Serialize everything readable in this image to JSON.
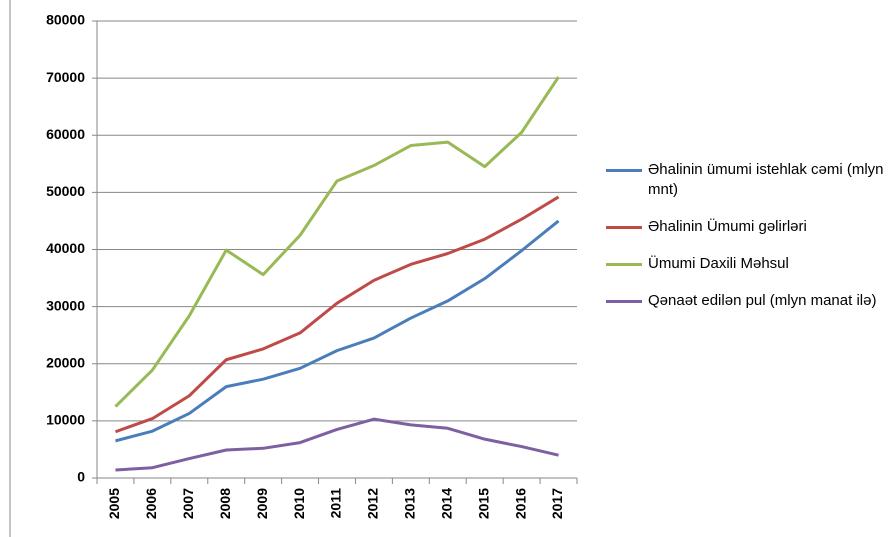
{
  "chart_data": {
    "type": "line",
    "categories": [
      "2005",
      "2006",
      "2007",
      "2008",
      "2009",
      "2010",
      "2011",
      "2012",
      "2013",
      "2014",
      "2015",
      "2016",
      "2017"
    ],
    "series": [
      {
        "name": "Əhalinin ümumi istehlak cəmi (mlyn mnt)",
        "color": "#4a7ebb",
        "values": [
          6500,
          8200,
          11300,
          16000,
          17300,
          19200,
          22300,
          24500,
          28000,
          31000,
          34900,
          39800,
          45000
        ]
      },
      {
        "name": "Əhalinin Ümumi gəlirləri",
        "color": "#be4b48",
        "values": [
          8100,
          10400,
          14400,
          20700,
          22600,
          25400,
          30600,
          34600,
          37400,
          39300,
          41800,
          45300,
          49200
        ]
      },
      {
        "name": "Ümumi Daxili Məhsul",
        "color": "#98b954",
        "values": [
          12500,
          18900,
          28400,
          39900,
          35600,
          42500,
          52000,
          54700,
          58200,
          58800,
          54500,
          60500,
          70200
        ]
      },
      {
        "name": "Qənaət edilən pul (mlyn manat ilə)",
        "color": "#7d60a0",
        "values": [
          1400,
          1800,
          3400,
          4900,
          5200,
          6200,
          8500,
          10300,
          9300,
          8700,
          6800,
          5500,
          4000
        ]
      }
    ],
    "ylim": [
      0,
      80000
    ],
    "yticks": [
      0,
      10000,
      20000,
      30000,
      40000,
      50000,
      60000,
      70000,
      80000
    ],
    "grid": true,
    "legend": "right"
  }
}
